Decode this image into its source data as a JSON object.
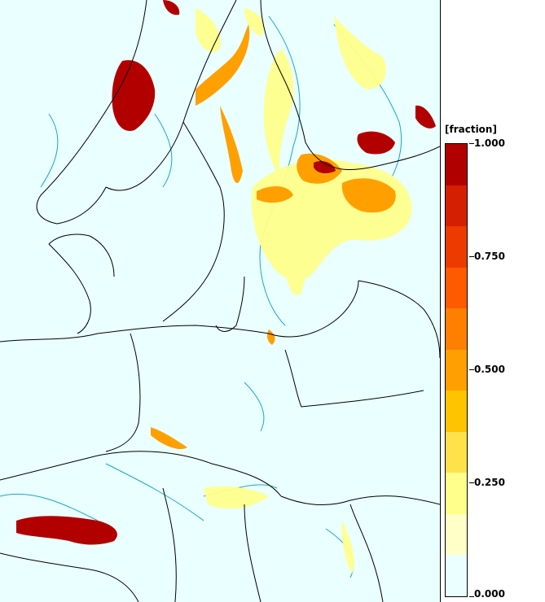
{
  "legend": {
    "title": "[fraction]",
    "labels": [
      "1.000",
      "0.750",
      "0.500",
      "0.250",
      "0.000"
    ],
    "bands": [
      "#b20000",
      "#d42000",
      "#ec3a00",
      "#ff5a00",
      "#ff7f00",
      "#ffa000",
      "#ffc400",
      "#ffe24a",
      "#ffff8c",
      "#ffffc8",
      "#eaffff"
    ]
  },
  "colors": {
    "background": "#eaffff",
    "border_lines": "#000000",
    "contour_low": "#18a6c8"
  }
}
